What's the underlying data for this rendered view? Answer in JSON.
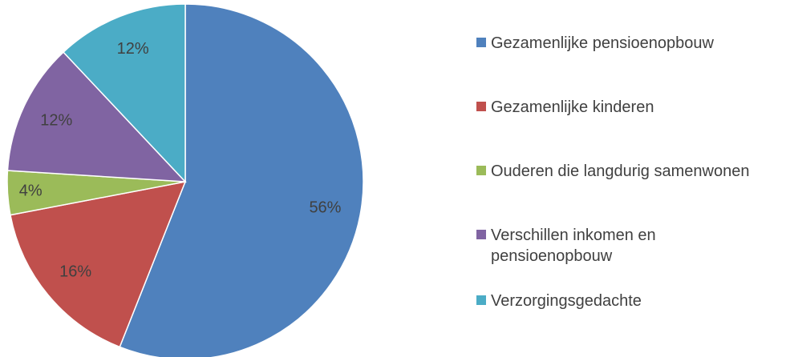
{
  "chart_data": {
    "type": "pie",
    "categories": [
      "Gezamenlijke pensioenopbouw",
      "Gezamenlijke kinderen",
      "Ouderen die langdurig samenwonen",
      "Verschillen inkomen en pensioenopbouw",
      "Verzorgingsgedachte"
    ],
    "values": [
      56,
      16,
      4,
      12,
      12
    ],
    "value_labels": [
      "56%",
      "16%",
      "4%",
      "12%",
      "12%"
    ],
    "colors": [
      "#4f81bd",
      "#c0504d",
      "#9bbb59",
      "#8064a2",
      "#4bacc6"
    ],
    "legend": "right"
  }
}
